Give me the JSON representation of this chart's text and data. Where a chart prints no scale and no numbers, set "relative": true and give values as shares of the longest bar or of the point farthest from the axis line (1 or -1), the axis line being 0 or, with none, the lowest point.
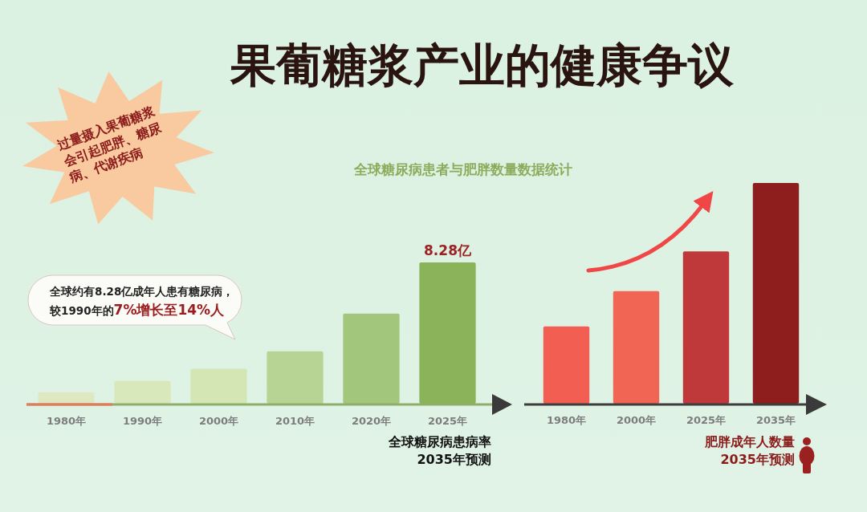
{
  "chart_data": [
    {
      "type": "bar",
      "title": "果葡糖浆产业的健康争议",
      "subtitle": "全球糖尿病患者与肥胖数量数据统计",
      "categories": [
        "1980年",
        "1990年",
        "2000年",
        "2010年",
        "2020年",
        "2025年"
      ],
      "values": [
        0.67,
        1.33,
        2.05,
        3.07,
        5.28,
        8.28
      ],
      "colors": [
        "#dfe8c3",
        "#d9e8bb",
        "#d3e6b3",
        "#b8d494",
        "#a2c67b",
        "#8bb35a"
      ],
      "value_labels": [
        null,
        null,
        null,
        null,
        null,
        "8.28亿"
      ],
      "xlabel": "全球糖尿病患病率\n2035年预测",
      "annotations": [
        "过量摄入果葡糖浆会引起肥胖、糖尿病、代谢疾病",
        "全球约有8.28亿成年人患有糖尿病，",
        "较1990年的",
        "7%增长至14%人"
      ]
    },
    {
      "type": "bar",
      "categories": [
        "1980年",
        "2000年",
        "2025年",
        "2035年"
      ],
      "values": [
        0.35,
        0.51,
        0.69,
        1.0
      ],
      "colors": [
        "#f35e52",
        "#f16555",
        "#c0393a",
        "#8e1d1e"
      ],
      "relative": true,
      "xlabel": "肥胖成年人数量\n2035年预测"
    }
  ]
}
